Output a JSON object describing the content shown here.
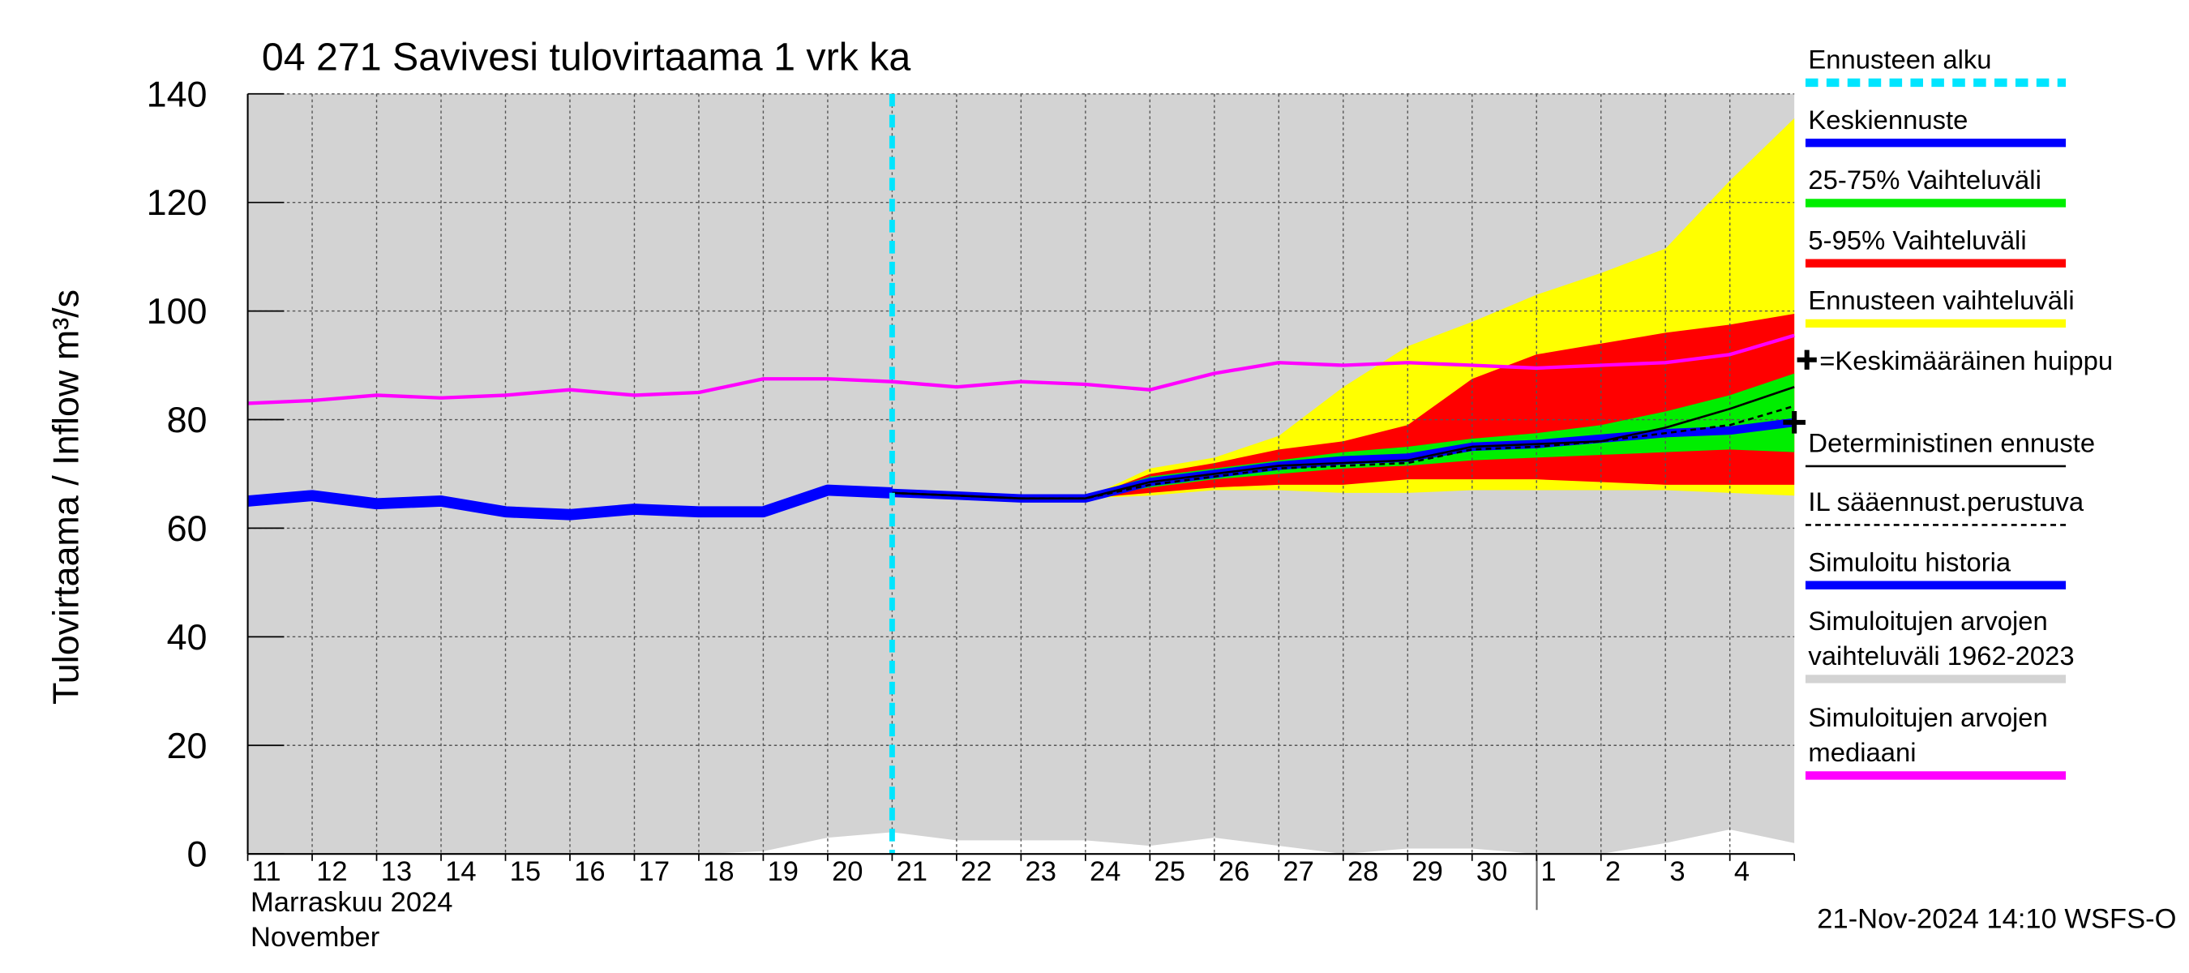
{
  "chart_data": {
    "type": "line",
    "title": "04 271 Savivesi tulovirtaama 1 vrk ka",
    "ylabel": "Tulovirtaama / Inflow    m³/s",
    "xlabel_fi": "Marraskuu 2024",
    "xlabel_en": "November",
    "footer": "21-Nov-2024 14:10 WSFS-O",
    "categories": [
      "11",
      "12",
      "13",
      "14",
      "15",
      "16",
      "17",
      "18",
      "19",
      "20",
      "21",
      "22",
      "23",
      "24",
      "25",
      "26",
      "27",
      "28",
      "29",
      "30",
      "1",
      "2",
      "3",
      "4",
      null
    ],
    "ylim": [
      0,
      140
    ],
    "yticks": [
      0,
      20,
      40,
      60,
      80,
      100,
      120,
      140
    ],
    "grid": true,
    "series": [
      {
        "name": "Ennusteen alku",
        "type": "vline",
        "color": "#00e5ff",
        "x": 10
      },
      {
        "name": "Keskiennuste",
        "type": "line",
        "color": "#0000ff",
        "values": [
          null,
          null,
          null,
          null,
          null,
          null,
          null,
          null,
          null,
          null,
          66.5,
          66,
          65.5,
          65.5,
          68.5,
          70,
          71.5,
          72.5,
          73,
          75,
          75.5,
          76.5,
          77.5,
          78,
          79.5
        ]
      },
      {
        "name": "25-75% Vaihteluväli",
        "type": "band",
        "color": "#00ee00",
        "upper": [
          null,
          null,
          null,
          null,
          null,
          null,
          null,
          null,
          null,
          null,
          66.5,
          66,
          65.5,
          66,
          69.5,
          71,
          72.5,
          74,
          75,
          76.5,
          77.5,
          79,
          81.5,
          84.5,
          88.5
        ],
        "lower": [
          null,
          null,
          null,
          null,
          null,
          null,
          null,
          null,
          null,
          null,
          66.5,
          66,
          65.5,
          65.5,
          67.5,
          69,
          70,
          71,
          71.5,
          72.5,
          73,
          73.5,
          74,
          74.5,
          74
        ]
      },
      {
        "name": "5-95% Vaihteluväli",
        "type": "band",
        "color": "#ff0000",
        "upper": [
          null,
          null,
          null,
          null,
          null,
          null,
          null,
          null,
          null,
          null,
          66.5,
          66,
          65.5,
          65.5,
          70,
          72,
          74.5,
          76,
          79,
          87.5,
          92,
          94,
          96,
          97.5,
          99.5
        ],
        "lower": [
          null,
          null,
          null,
          null,
          null,
          null,
          null,
          null,
          null,
          null,
          66.5,
          66,
          65.5,
          65.5,
          66.5,
          67.5,
          68,
          68,
          69,
          69,
          69,
          68.5,
          68,
          68,
          68
        ]
      },
      {
        "name": "Ennusteen vaihteluväli",
        "type": "band",
        "color": "#ffff00",
        "upper": [
          null,
          null,
          null,
          null,
          null,
          null,
          null,
          null,
          null,
          null,
          66.5,
          66,
          65.5,
          65.5,
          71,
          73,
          77,
          86,
          93.5,
          98,
          103,
          107,
          111.5,
          124,
          135.5
        ],
        "lower": [
          null,
          null,
          null,
          null,
          null,
          null,
          null,
          null,
          null,
          null,
          66.5,
          66,
          65.5,
          65.5,
          66,
          67,
          67,
          66.5,
          66.5,
          67,
          67,
          67,
          67,
          66.5,
          66
        ]
      },
      {
        "name": "=Keskimääräinen huippu",
        "type": "marker",
        "color": "#000000",
        "x": 24,
        "value": 79.5
      },
      {
        "name": "Deterministinen ennuste",
        "type": "line",
        "color": "#000000",
        "values": [
          null,
          null,
          null,
          null,
          null,
          null,
          null,
          null,
          null,
          null,
          66.5,
          66,
          65.5,
          65.5,
          68.5,
          70,
          71.5,
          72,
          72.5,
          75,
          75.5,
          76,
          78.5,
          82,
          86
        ]
      },
      {
        "name": "IL sääennust.perustuva",
        "type": "line",
        "color": "#000000",
        "dash": true,
        "values": [
          null,
          null,
          null,
          null,
          null,
          null,
          null,
          null,
          null,
          null,
          66.5,
          66,
          65.5,
          65.5,
          68,
          69.5,
          71,
          71.5,
          72,
          74.5,
          75,
          76,
          77.5,
          79,
          82.5
        ]
      },
      {
        "name": "Simuloitu historia",
        "type": "line",
        "color": "#0000ff",
        "values": [
          65,
          66,
          64.5,
          65,
          63,
          62.5,
          63.5,
          63,
          63,
          67,
          66.5,
          null,
          null,
          null,
          null,
          null,
          null,
          null,
          null,
          null,
          null,
          null,
          null,
          null,
          null
        ]
      },
      {
        "name": "Simuloitujen arvojen vaihteluväli 1962-2023",
        "type": "band",
        "color": "#d3d3d3",
        "upper": [
          140,
          140,
          140,
          140,
          140,
          140,
          140,
          140,
          140,
          140,
          140,
          140,
          140,
          140,
          140,
          140,
          140,
          140,
          140,
          140,
          140,
          140,
          140,
          140,
          140
        ],
        "lower": [
          0,
          0,
          0,
          0,
          0,
          0,
          0,
          0,
          0.5,
          3,
          4,
          2.5,
          2.5,
          2.5,
          1.5,
          3,
          1.5,
          0,
          1,
          1,
          0,
          0,
          2,
          4.5,
          2
        ]
      },
      {
        "name": "Simuloitujen arvojen mediaani",
        "type": "line",
        "color": "#ff00ff",
        "values": [
          83,
          83.5,
          84.5,
          84,
          84.5,
          85.5,
          84.5,
          85,
          87.5,
          87.5,
          87,
          86,
          87,
          86.5,
          85.5,
          88.5,
          90.5,
          90,
          90.5,
          90,
          89.5,
          90,
          90.5,
          92,
          95.5
        ]
      }
    ]
  }
}
